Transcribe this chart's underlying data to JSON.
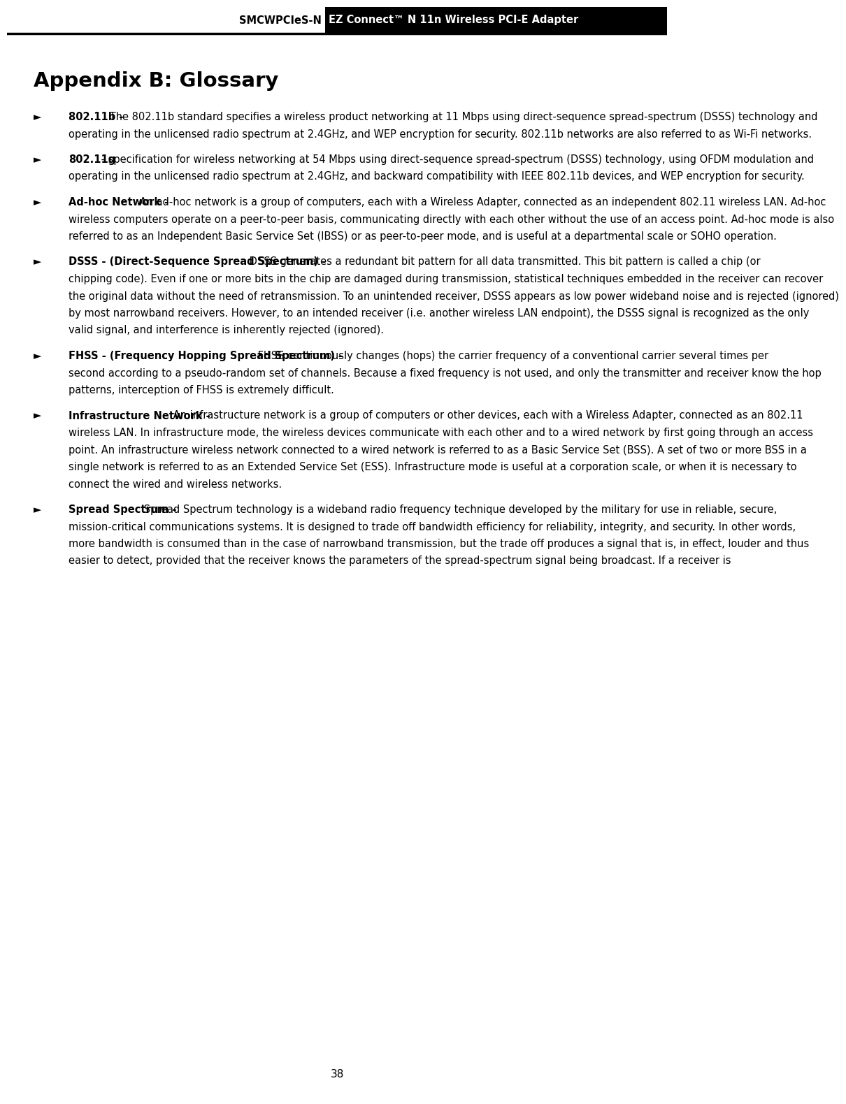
{
  "header_left": "SMCWPCIeS-N",
  "header_right": "EZ Connect™ N 11n Wireless PCI-E Adapter",
  "title": "Appendix B: Glossary",
  "page_number": "38",
  "entries": [
    {
      "term": "802.11b -",
      "body": " The 802.11b standard specifies a wireless product networking at 11 Mbps using direct-sequence spread-spectrum (DSSS) technology and operating in the unlicensed radio spectrum at 2.4GHz, and WEP encryption for security. 802.11b networks are also referred to as Wi-Fi networks."
    },
    {
      "term": "802.11g",
      "body": " - specification for wireless networking at 54 Mbps using direct-sequence spread-spectrum (DSSS) technology, using OFDM modulation and operating in the unlicensed radio spectrum at 2.4GHz, and backward compatibility with IEEE 802.11b devices, and WEP encryption for security."
    },
    {
      "term": "Ad-hoc Network -",
      "body": " An ad-hoc network is a group of computers, each with a Wireless Adapter, connected as an independent 802.11 wireless LAN. Ad-hoc wireless computers operate on a peer-to-peer basis, communicating directly with each other without the use of an access point. Ad-hoc mode is also referred to as an Independent Basic Service Set (IBSS) or as peer-to-peer mode, and is useful at a departmental scale or SOHO operation."
    },
    {
      "term": "DSSS - (Direct-Sequence Spread Spectrum) -",
      "body": " DSSS generates a redundant bit pattern for all data transmitted. This bit pattern is called a chip (or chipping code). Even if one or more bits in the chip are damaged during transmission, statistical techniques embedded in the receiver can recover the original data without the need of retransmission. To an unintended receiver, DSSS appears as low power wideband noise and is rejected (ignored) by most narrowband receivers. However, to an intended receiver (i.e. another wireless LAN endpoint), the DSSS signal is recognized as the only valid signal, and interference is inherently rejected (ignored)."
    },
    {
      "term": "FHSS - (Frequency Hopping Spread Spectrum) -",
      "body": " FHSS continuously changes (hops) the carrier frequency of a conventional carrier several times per second according to a pseudo-random set of channels. Because a fixed frequency is not used, and only the transmitter and receiver know the hop patterns, interception of FHSS is extremely difficult."
    },
    {
      "term": "Infrastructure Network -",
      "body": " An infrastructure network is a group of computers or other devices, each with a Wireless Adapter, connected as an 802.11 wireless LAN. In infrastructure mode, the wireless devices communicate with each other and to a wired network by first going through an access point. An infrastructure wireless network connected to a wired network is referred to as a Basic Service Set (BSS). A set of two or more BSS in a single network is referred to as an Extended Service Set (ESS). Infrastructure mode is useful at a corporation scale, or when it is necessary to connect the wired and wireless networks."
    },
    {
      "term": "Spread Spectrum -",
      "body": " Spread Spectrum technology is a wideband radio frequency technique developed by the military for use in reliable, secure, mission-critical communications systems. It is designed to trade off bandwidth efficiency for reliability, integrity, and security. In other words, more bandwidth is consumed than in the case of narrowband transmission, but the trade off produces a signal that is, in effect, louder and thus easier to detect, provided that the receiver knows the parameters of the spread-spectrum signal being broadcast. If a receiver is"
    }
  ],
  "bg_color": "#ffffff",
  "header_bg": "#000000",
  "header_text_color": "#ffffff",
  "body_text_color": "#000000",
  "font_size_header": 10.5,
  "font_size_title": 21,
  "font_size_body": 10.5
}
